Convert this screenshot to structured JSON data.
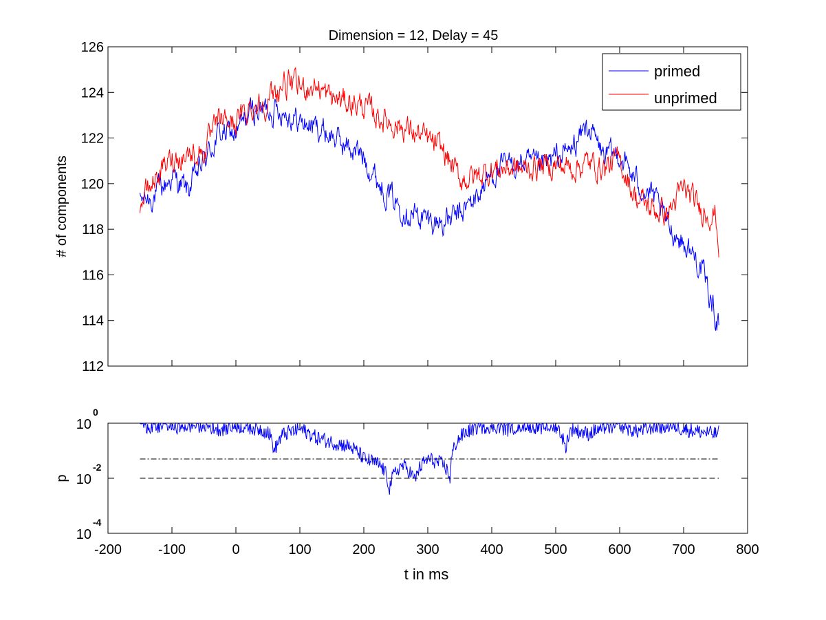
{
  "figure": {
    "title": "Dimension  = 12, Delay = 45",
    "xlabel": "t in ms"
  },
  "chart_data": [
    {
      "type": "line",
      "title": "Dimension  = 12, Delay = 45",
      "xlabel": "",
      "ylabel": "# of components",
      "xlim": [
        -200,
        800
      ],
      "ylim": [
        112,
        126
      ],
      "xticks": [
        -200,
        -100,
        0,
        100,
        200,
        300,
        400,
        500,
        600,
        700,
        800
      ],
      "yticks": [
        112,
        114,
        116,
        118,
        120,
        122,
        124,
        126
      ],
      "xticklabels_visible": false,
      "grid": false,
      "legend": {
        "placement": "top-right",
        "entries": [
          "primed",
          "unprimed"
        ]
      },
      "x": [
        -150,
        -125,
        -100,
        -75,
        -50,
        -25,
        0,
        25,
        50,
        75,
        100,
        125,
        150,
        175,
        200,
        225,
        250,
        275,
        300,
        325,
        350,
        375,
        400,
        425,
        450,
        475,
        500,
        525,
        550,
        575,
        600,
        625,
        650,
        675,
        700,
        725,
        750,
        755
      ],
      "series": [
        {
          "name": "primed",
          "color": "#0000ff",
          "values": [
            119.2,
            119.5,
            120.3,
            119.7,
            121.0,
            122.2,
            122.2,
            123.2,
            123.3,
            123.2,
            122.7,
            122.5,
            122.1,
            121.6,
            121.2,
            120.0,
            119.2,
            118.7,
            118.4,
            118.3,
            118.6,
            119.4,
            120.4,
            120.8,
            120.9,
            120.7,
            121.1,
            121.5,
            122.6,
            121.2,
            121.3,
            120.1,
            119.5,
            118.2,
            117.4,
            116.5,
            114.2,
            113.9
          ]
        },
        {
          "name": "unprimed",
          "color": "#ff0000",
          "values": [
            119.1,
            120.3,
            121.1,
            121.3,
            121.4,
            122.8,
            122.7,
            123.4,
            123.6,
            124.4,
            124.2,
            124.3,
            123.7,
            123.6,
            123.4,
            122.9,
            122.6,
            122.3,
            121.9,
            121.4,
            120.2,
            120.3,
            120.6,
            120.7,
            120.6,
            120.8,
            120.8,
            120.7,
            120.9,
            120.7,
            121.0,
            119.4,
            118.9,
            118.7,
            119.8,
            118.9,
            118.6,
            117.3
          ]
        }
      ]
    },
    {
      "type": "line",
      "title": "",
      "xlabel": "t in ms",
      "ylabel": "p",
      "xlim": [
        -200,
        800
      ],
      "ylim": [
        0.0001,
        1
      ],
      "yscale": "log",
      "xticks": [
        -200,
        -100,
        0,
        100,
        200,
        300,
        400,
        500,
        600,
        700,
        800
      ],
      "xticklabels": [
        "-200",
        "-100",
        "0",
        "100",
        "200",
        "300",
        "400",
        "500",
        "600",
        "700",
        "800"
      ],
      "yticks": [
        0.0001,
        0.01,
        1
      ],
      "yticklabels": [
        {
          "base": "10",
          "exp": "-4"
        },
        {
          "base": "10",
          "exp": "-2"
        },
        {
          "base": "10",
          "exp": "0"
        }
      ],
      "grid": false,
      "x": [
        -150,
        -125,
        -100,
        -75,
        -50,
        -25,
        0,
        25,
        50,
        60,
        75,
        100,
        125,
        150,
        175,
        200,
        225,
        240,
        260,
        280,
        300,
        325,
        335,
        350,
        375,
        400,
        425,
        450,
        475,
        500,
        515,
        525,
        550,
        575,
        600,
        625,
        650,
        675,
        700,
        725,
        750,
        755
      ],
      "series": [
        {
          "name": "",
          "color": "#0000ff",
          "values": [
            0.9,
            0.7,
            0.75,
            0.8,
            0.85,
            0.6,
            0.8,
            0.7,
            0.5,
            0.08,
            0.4,
            0.6,
            0.3,
            0.2,
            0.15,
            0.05,
            0.03,
            0.004,
            0.03,
            0.008,
            0.05,
            0.03,
            0.009,
            0.3,
            0.7,
            0.8,
            0.6,
            0.9,
            0.7,
            0.8,
            0.1,
            0.6,
            0.4,
            0.7,
            0.8,
            0.5,
            0.7,
            0.8,
            0.6,
            0.5,
            0.4,
            0.45
          ]
        },
        {
          "name": "",
          "color": "#000000",
          "style": "dash-dot",
          "x": [
            -150,
            755
          ],
          "values": [
            0.05,
            0.05
          ]
        },
        {
          "name": "",
          "color": "#000000",
          "style": "dashed",
          "x": [
            -150,
            755
          ],
          "values": [
            0.01,
            0.01
          ]
        }
      ]
    }
  ]
}
